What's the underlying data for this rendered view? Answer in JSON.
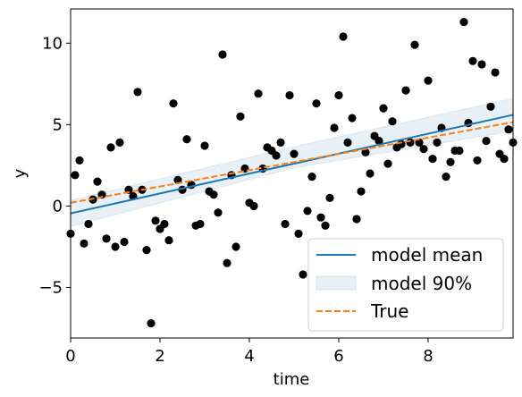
{
  "chart_data": {
    "type": "scatter",
    "xlabel": "time",
    "ylabel": "y",
    "xlim": [
      0,
      9.9
    ],
    "ylim": [
      -8.1,
      12.1
    ],
    "x_ticks": [
      0,
      2,
      4,
      6,
      8
    ],
    "x_tick_labels": [
      "0",
      "2",
      "4",
      "6",
      "8"
    ],
    "y_ticks": [
      -5,
      0,
      5,
      10
    ],
    "y_tick_labels": [
      "−5",
      "0",
      "5",
      "10"
    ],
    "grid": false,
    "legend_position": "lower-right",
    "colors": {
      "points": "#000000",
      "model_mean": "#1f77b4",
      "band_fill": "#1f77b4",
      "true_line": "#ff7f0e"
    },
    "legend": [
      {
        "label": "model mean",
        "kind": "line"
      },
      {
        "label": "model 90%",
        "kind": "band"
      },
      {
        "label": "True",
        "kind": "dashed"
      }
    ],
    "model_mean": {
      "x": [
        0,
        9.9
      ],
      "y": [
        -0.45,
        5.6
      ]
    },
    "model_band": {
      "x": [
        0,
        5,
        9.9
      ],
      "lower": [
        -1.25,
        2.35,
        4.6
      ],
      "upper": [
        0.35,
        3.65,
        6.6
      ]
    },
    "true_line": {
      "x": [
        0,
        9.9
      ],
      "y": [
        0.2,
        5.15
      ]
    },
    "points": {
      "x": [
        0.0,
        0.1,
        0.2,
        0.3,
        0.4,
        0.5,
        0.6,
        0.7,
        0.8,
        0.9,
        1.0,
        1.1,
        1.2,
        1.3,
        1.4,
        1.5,
        1.6,
        1.7,
        1.8,
        1.9,
        2.0,
        2.1,
        2.2,
        2.3,
        2.4,
        2.5,
        2.6,
        2.7,
        2.8,
        2.9,
        3.0,
        3.1,
        3.2,
        3.3,
        3.4,
        3.5,
        3.6,
        3.7,
        3.8,
        3.9,
        4.0,
        4.1,
        4.2,
        4.3,
        4.4,
        4.5,
        4.6,
        4.7,
        4.8,
        4.9,
        5.0,
        5.1,
        5.2,
        5.3,
        5.4,
        5.5,
        5.6,
        5.7,
        5.8,
        5.9,
        6.0,
        6.1,
        6.2,
        6.3,
        6.4,
        6.5,
        6.6,
        6.7,
        6.8,
        6.9,
        7.0,
        7.1,
        7.2,
        7.3,
        7.4,
        7.5,
        7.6,
        7.7,
        7.8,
        7.9,
        8.0,
        8.1,
        8.2,
        8.3,
        8.4,
        8.5,
        8.6,
        8.7,
        8.8,
        8.9,
        9.0,
        9.1,
        9.2,
        9.3,
        9.4,
        9.5,
        9.6,
        9.7,
        9.8,
        9.9
      ],
      "y": [
        -1.7,
        1.9,
        2.8,
        -2.3,
        -1.1,
        0.4,
        1.5,
        0.7,
        -2.0,
        3.6,
        -2.5,
        3.9,
        -2.2,
        1.0,
        0.6,
        7.0,
        1.0,
        -2.7,
        -7.2,
        -0.9,
        -1.4,
        -1.1,
        -2.1,
        6.3,
        1.6,
        1.0,
        4.1,
        1.3,
        -1.2,
        -1.1,
        3.7,
        0.9,
        0.7,
        -0.4,
        9.3,
        -3.5,
        1.9,
        -2.5,
        5.5,
        2.3,
        0.2,
        0.0,
        6.9,
        2.3,
        3.6,
        3.4,
        3.1,
        3.9,
        -1.1,
        6.8,
        3.2,
        -1.7,
        -4.2,
        -0.3,
        1.8,
        6.3,
        -0.7,
        -1.2,
        0.5,
        4.8,
        6.8,
        10.4,
        3.9,
        5.4,
        -0.8,
        0.9,
        3.3,
        2.0,
        4.3,
        4.0,
        6.0,
        2.6,
        5.2,
        3.6,
        3.8,
        7.1,
        3.9,
        9.9,
        3.9,
        3.5,
        7.7,
        2.9,
        3.9,
        4.8,
        1.8,
        2.7,
        3.4,
        3.4,
        11.3,
        5.1,
        8.9,
        2.8,
        8.7,
        4.0,
        6.1,
        8.2,
        3.2,
        2.9,
        4.7,
        3.9
      ]
    }
  }
}
